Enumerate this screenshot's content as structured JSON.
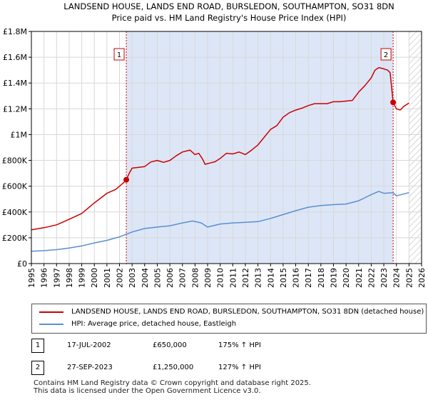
{
  "chart_data": {
    "type": "line",
    "title": "LANDSEND HOUSE, LANDS END ROAD, BURSLEDON, SOUTHAMPTON, SO31 8DN",
    "subtitle": "Price paid vs. HM Land Registry's House Price Index (HPI)",
    "xlim": [
      1995,
      2026
    ],
    "ylim": [
      0,
      1800000
    ],
    "x_ticks": [
      1995,
      1996,
      1997,
      1998,
      1999,
      2000,
      2001,
      2002,
      2003,
      2004,
      2005,
      2006,
      2007,
      2008,
      2009,
      2010,
      2011,
      2012,
      2013,
      2014,
      2015,
      2016,
      2017,
      2018,
      2019,
      2020,
      2021,
      2022,
      2023,
      2024,
      2025,
      2026
    ],
    "y_ticks": [
      {
        "value": 0,
        "label": "£0"
      },
      {
        "value": 200000,
        "label": "£200K"
      },
      {
        "value": 400000,
        "label": "£400K"
      },
      {
        "value": 600000,
        "label": "£600K"
      },
      {
        "value": 800000,
        "label": "£800K"
      },
      {
        "value": 1000000,
        "label": "£1M"
      },
      {
        "value": 1200000,
        "label": "£1.2M"
      },
      {
        "value": 1400000,
        "label": "£1.4M"
      },
      {
        "value": 1600000,
        "label": "£1.6M"
      },
      {
        "value": 1800000,
        "label": "£1.8M"
      }
    ],
    "shaded_period": {
      "from": 2002.54,
      "to": 2023.74
    },
    "hatched_from": 2025.0,
    "series": [
      {
        "name": "LANDSEND HOUSE, LANDS END ROAD, BURSLEDON, SOUTHAMPTON, SO31 8DN (detached house)",
        "color": "#cc0000",
        "x": [
          1995,
          1996,
          1997,
          1998,
          1999,
          2000,
          2001,
          2001.7,
          2002.0,
          2002.3,
          2002.54,
          2002.8,
          2003,
          2004,
          2004.5,
          2005,
          2005.5,
          2006,
          2006.5,
          2007,
          2007.6,
          2008,
          2008.3,
          2008.6,
          2008.8,
          2009.2,
          2009.6,
          2010,
          2010.5,
          2011,
          2011.5,
          2012,
          2012.5,
          2013,
          2013.5,
          2014,
          2014.5,
          2015,
          2015.5,
          2016,
          2016.5,
          2017,
          2017.5,
          2018,
          2018.5,
          2019,
          2019.5,
          2020,
          2020.5,
          2021,
          2021.5,
          2022,
          2022.3,
          2022.6,
          2023,
          2023.3,
          2023.5,
          2023.74,
          2024.0,
          2024.3,
          2024.6,
          2025.0
        ],
        "y": [
          262000,
          278000,
          300000,
          343000,
          389000,
          470000,
          545000,
          575000,
          600000,
          625000,
          650000,
          705000,
          740000,
          752000,
          788000,
          800000,
          785000,
          800000,
          835000,
          865000,
          880000,
          845000,
          855000,
          810000,
          770000,
          780000,
          790000,
          815000,
          855000,
          850000,
          865000,
          845000,
          880000,
          920000,
          980000,
          1040000,
          1070000,
          1135000,
          1170000,
          1190000,
          1205000,
          1225000,
          1240000,
          1240000,
          1240000,
          1255000,
          1255000,
          1260000,
          1265000,
          1330000,
          1380000,
          1440000,
          1500000,
          1520000,
          1510000,
          1500000,
          1480000,
          1250000,
          1200000,
          1190000,
          1220000,
          1245000
        ]
      },
      {
        "name": "HPI: Average price, detached house, Eastleigh",
        "color": "#5b8fd1",
        "x": [
          1995,
          1996,
          1997,
          1998,
          1999,
          2000,
          2001,
          2002,
          2003,
          2004,
          2005,
          2006,
          2007,
          2007.8,
          2008.5,
          2009,
          2010,
          2011,
          2012,
          2013,
          2014,
          2015,
          2016,
          2017,
          2018,
          2019,
          2020,
          2021,
          2022,
          2022.6,
          2023,
          2023.74,
          2024,
          2025
        ],
        "y": [
          95000,
          100000,
          108000,
          120000,
          137000,
          160000,
          180000,
          207000,
          245000,
          272000,
          283000,
          293000,
          315000,
          330000,
          315000,
          283000,
          307000,
          315000,
          320000,
          325000,
          350000,
          380000,
          410000,
          437000,
          450000,
          457000,
          462000,
          487000,
          535000,
          560000,
          545000,
          550000,
          525000,
          550000
        ]
      }
    ],
    "sales": [
      {
        "label": "1",
        "x": 2002.54,
        "y": 650000
      },
      {
        "label": "2",
        "x": 2023.74,
        "y": 1250000
      }
    ]
  },
  "legend": {
    "property_label": "LANDSEND HOUSE, LANDS END ROAD, BURSLEDON, SOUTHAMPTON, SO31 8DN (detached house)",
    "hpi_label": "HPI: Average price, detached house, Eastleigh"
  },
  "transactions": [
    {
      "num": "1",
      "date": "17-JUL-2002",
      "price": "£650,000",
      "hpi": "175% ↑ HPI"
    },
    {
      "num": "2",
      "date": "27-SEP-2023",
      "price": "£1,250,000",
      "hpi": "127% ↑ HPI"
    }
  ],
  "footer": {
    "line1": "Contains HM Land Registry data © Crown copyright and database right 2025.",
    "line2": "This data is licensed under the Open Government Licence v3.0."
  },
  "colors": {
    "property": "#cc0000",
    "hpi": "#5b8fd1",
    "shade": "#dce6f7",
    "grid": "#d8d8d8"
  }
}
